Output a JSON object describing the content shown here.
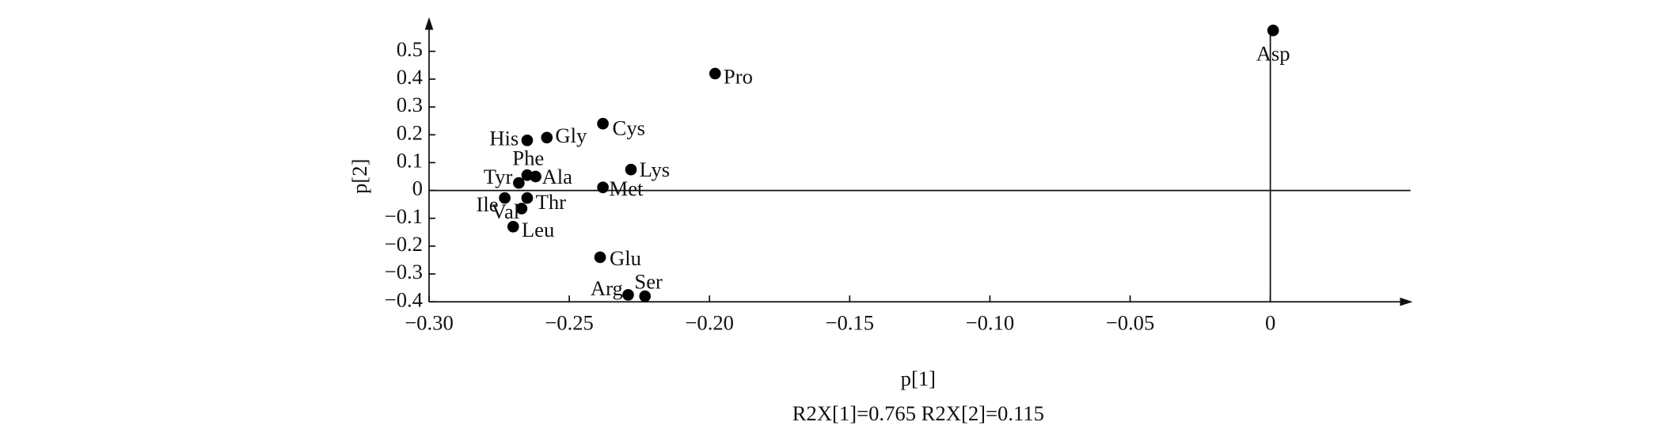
{
  "chart_data": {
    "type": "scatter",
    "x_label": "p[1]",
    "y_label": "p[2]",
    "footnote": "R2X[1]=0.765 R2X[2]=0.115",
    "color": "#000000",
    "labels": [
      "Asp",
      "Pro",
      "Cys",
      "Gly",
      "His",
      "Lys",
      "Phe",
      "Ala",
      "Tyr",
      "Met",
      "Thr",
      "Ile",
      "Val",
      "Leu",
      "Glu",
      "Arg",
      "Ser"
    ],
    "x": [
      0.001,
      -0.198,
      -0.238,
      -0.258,
      -0.265,
      -0.228,
      -0.265,
      -0.262,
      -0.268,
      -0.238,
      -0.265,
      -0.273,
      -0.267,
      -0.27,
      -0.239,
      -0.229,
      -0.223
    ],
    "y": [
      0.575,
      0.42,
      0.24,
      0.19,
      0.18,
      0.075,
      0.055,
      0.05,
      0.027,
      0.011,
      -0.027,
      -0.027,
      -0.065,
      -0.13,
      -0.24,
      -0.375,
      -0.38
    ],
    "xlim": [
      -0.3,
      0.05
    ],
    "ylim": [
      -0.4,
      0.6
    ],
    "xticks": [
      {
        "value": -0.3,
        "label": "−0.30"
      },
      {
        "value": -0.25,
        "label": "−0.25"
      },
      {
        "value": -0.2,
        "label": "−0.20"
      },
      {
        "value": -0.15,
        "label": "−0.15"
      },
      {
        "value": -0.1,
        "label": "−0.10"
      },
      {
        "value": -0.05,
        "label": "−0.05"
      },
      0
    ],
    "yticks": [
      {
        "value": -0.4,
        "label": "−0.4"
      },
      {
        "value": -0.3,
        "label": "−0.3"
      },
      {
        "value": -0.2,
        "label": "−0.2"
      },
      {
        "value": -0.1,
        "label": "−0.1"
      },
      0,
      0.1,
      0.2,
      0.3,
      0.4,
      0.5
    ]
  }
}
